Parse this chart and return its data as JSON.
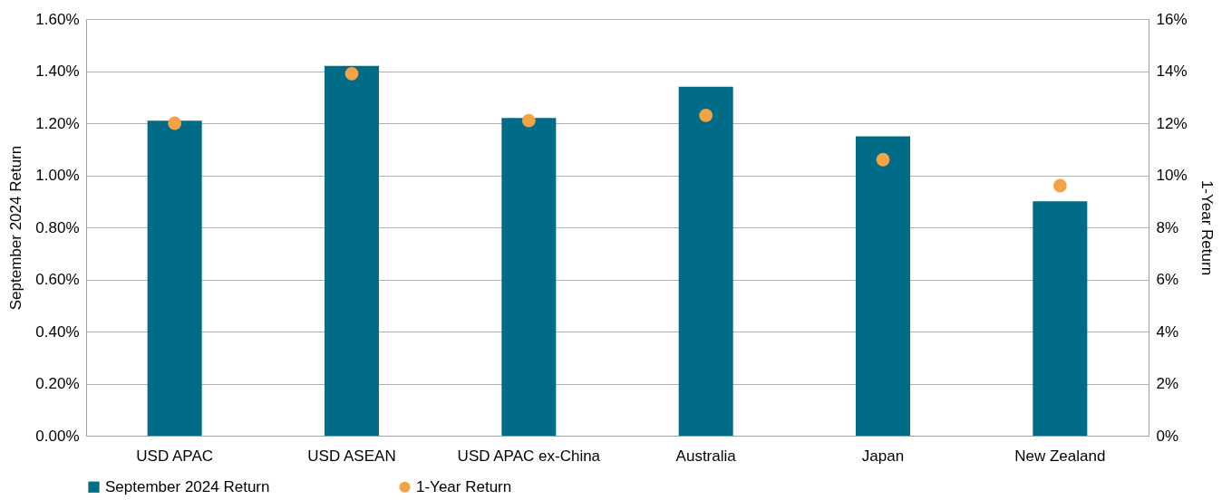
{
  "chart_data": {
    "type": "bar",
    "ylabel": "September 2024 Return",
    "y2label": "1-Year Return",
    "categories": [
      "USD APAC",
      "USD ASEAN",
      "USD APAC ex-China",
      "Australia",
      "Japan",
      "New Zealand"
    ],
    "series": [
      {
        "name": "September 2024 Return",
        "color": "#006c88",
        "values": [
          1.21,
          1.42,
          1.22,
          1.34,
          1.15,
          0.9
        ]
      },
      {
        "name": "1-Year Return",
        "type": "scatter",
        "axis": "y2",
        "marker": "circle",
        "color": "#f2a444",
        "values": [
          12.0,
          13.9,
          12.1,
          12.3,
          10.6,
          9.6
        ]
      }
    ],
    "ylim": [
      0,
      1.6
    ],
    "yticks": [
      {
        "value": 0,
        "label": "0.00%"
      },
      {
        "value": 0.2,
        "label": "0.20%"
      },
      {
        "value": 0.4,
        "label": "0.40%"
      },
      {
        "value": 0.6,
        "label": "0.60%"
      },
      {
        "value": 0.8,
        "label": "0.80%"
      },
      {
        "value": 1.0,
        "label": "1.00%"
      },
      {
        "value": 1.2,
        "label": "1.20%"
      },
      {
        "value": 1.4,
        "label": "1.40%"
      },
      {
        "value": 1.6,
        "label": "1.60%"
      }
    ],
    "y2lim": [
      0,
      16
    ],
    "y2ticks": [
      {
        "value": 0,
        "label": "0%"
      },
      {
        "value": 2,
        "label": "2%"
      },
      {
        "value": 4,
        "label": "4%"
      },
      {
        "value": 6,
        "label": "6%"
      },
      {
        "value": 8,
        "label": "8%"
      },
      {
        "value": 10,
        "label": "10%"
      },
      {
        "value": 12,
        "label": "12%"
      },
      {
        "value": 14,
        "label": "14%"
      },
      {
        "value": 16,
        "label": "16%"
      }
    ],
    "grid": "y",
    "legend": "bottom"
  }
}
